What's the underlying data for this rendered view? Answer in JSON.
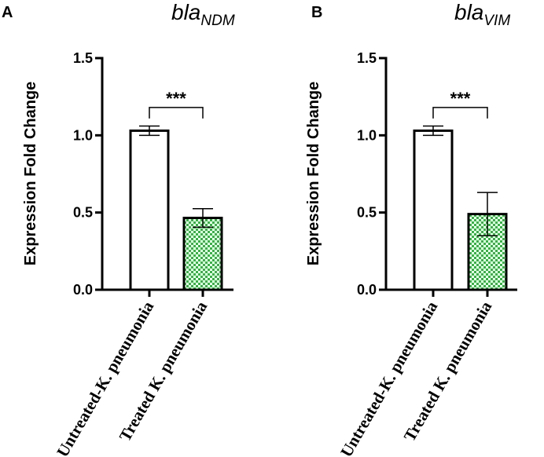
{
  "chart_data": [
    {
      "type": "bar",
      "panel_label": "A",
      "gene": {
        "base": "bla",
        "subscript": "NDM"
      },
      "ylabel": "Expression Fold Change",
      "ylim": [
        0,
        1.5
      ],
      "yticks": [
        0.0,
        0.5,
        1.0,
        1.5
      ],
      "ytick_labels": [
        "0.0",
        "0.5",
        "1.0",
        "1.5"
      ],
      "categories": [
        "Untreated-K. pneumonia",
        "Treated K. pneumonia"
      ],
      "values": [
        1.03,
        0.465
      ],
      "errors": [
        0.03,
        0.06
      ],
      "bar_styles": [
        "open",
        "checkered"
      ],
      "significance": "***",
      "colors": {
        "hatch": "#2db83d",
        "outline": "#000000",
        "open": "#ffffff"
      }
    },
    {
      "type": "bar",
      "panel_label": "B",
      "gene": {
        "base": "bla",
        "subscript": "VIM"
      },
      "ylabel": "Expression Fold Change",
      "ylim": [
        0,
        1.5
      ],
      "yticks": [
        0.0,
        0.5,
        1.0,
        1.5
      ],
      "ytick_labels": [
        "0.0",
        "0.5",
        "1.0",
        "1.5"
      ],
      "categories": [
        "Untreated-K. pneumonia",
        "Treated K. pneumonia"
      ],
      "values": [
        1.03,
        0.49
      ],
      "errors": [
        0.03,
        0.14
      ],
      "bar_styles": [
        "open",
        "checkered"
      ],
      "significance": "***",
      "colors": {
        "hatch": "#2db83d",
        "outline": "#000000",
        "open": "#ffffff"
      }
    }
  ]
}
